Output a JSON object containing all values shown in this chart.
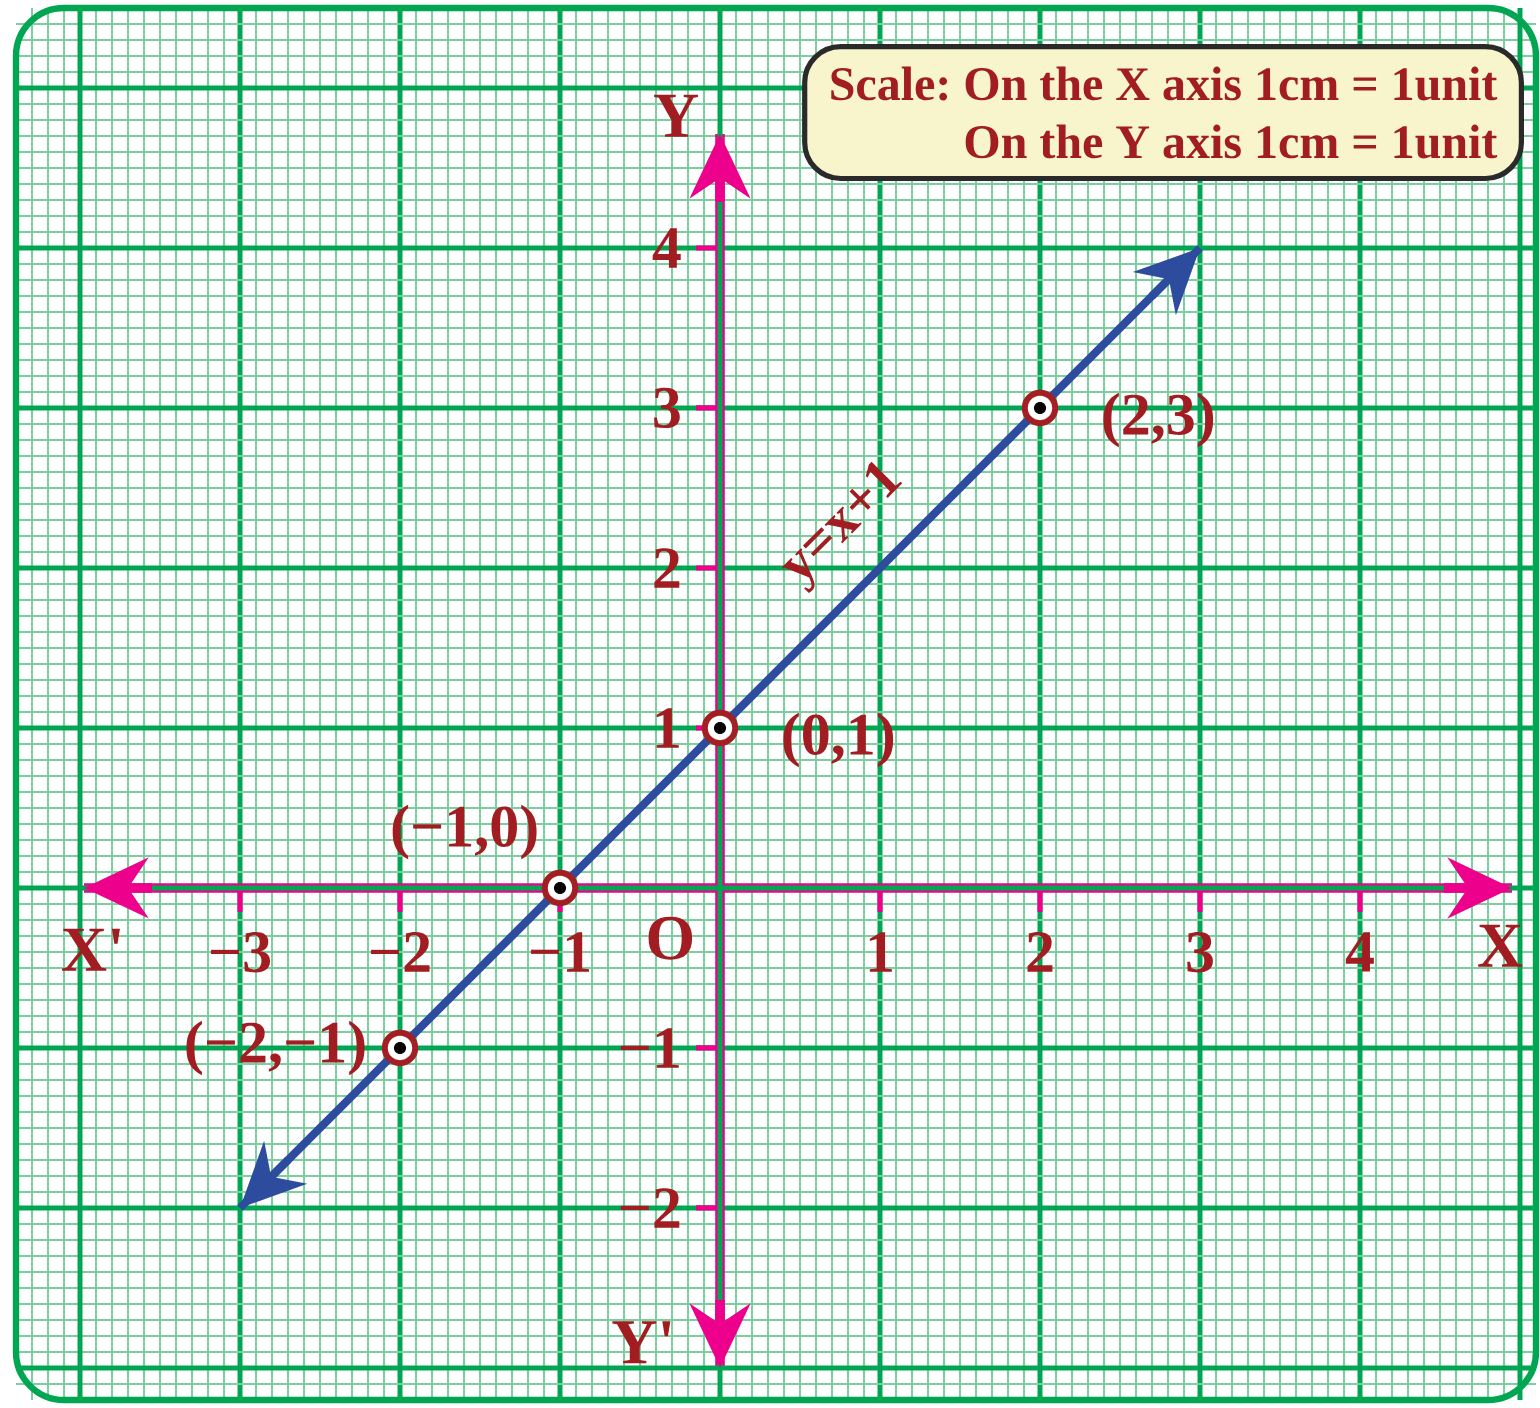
{
  "chart_data": {
    "type": "line",
    "xlabel": "X",
    "ylabel": "Y",
    "annotations": [
      "X'",
      "Y'",
      "O",
      "Scale: On the X axis 1cm = 1unit",
      "On the Y axis 1cm = 1unit",
      {
        "text": "(−2,−1)",
        "x": -2,
        "y": -1
      },
      {
        "text": "(−1,0)",
        "x": -1,
        "y": 0
      },
      {
        "text": "(0,1)",
        "x": 0,
        "y": 1
      },
      {
        "text": "(2,3)",
        "x": 2,
        "y": 3
      }
    ],
    "series": [
      {
        "name": "y=x+1",
        "color": "#2e4c9e",
        "x": [
          -3,
          3
        ],
        "values": [
          -2,
          4
        ],
        "marker": "none"
      },
      {
        "type": "scatter",
        "color": "#a31f24",
        "x": [
          -2,
          -1,
          0,
          2
        ],
        "values": [
          -1,
          0,
          1,
          3
        ],
        "marker": "circle"
      }
    ],
    "xlim": [
      -4.4,
      5.1
    ],
    "ylim": [
      -3.2,
      5.5
    ],
    "xticks": [
      {
        "value": -4,
        "label": null
      },
      {
        "value": -3,
        "label": "−3"
      },
      {
        "value": -2,
        "label": "−2"
      },
      {
        "value": -1,
        "label": "−1"
      },
      {
        "value": 0,
        "label": null
      },
      1,
      2,
      3,
      4,
      {
        "value": 5,
        "label": null
      },
      {
        "value": -4.3,
        "label": null
      },
      {
        "value": -4.2,
        "label": null
      },
      {
        "value": -4.1,
        "label": null
      },
      {
        "value": -3.9,
        "label": null
      },
      {
        "value": -3.8,
        "label": null
      },
      {
        "value": -3.7,
        "label": null
      },
      {
        "value": -3.6,
        "label": null
      },
      {
        "value": -3.5,
        "label": null
      },
      {
        "value": -3.4,
        "label": null
      },
      {
        "value": -3.3,
        "label": null
      },
      {
        "value": -3.2,
        "label": null
      },
      {
        "value": -3.1,
        "label": null
      },
      {
        "value": -2.9,
        "label": null
      },
      {
        "value": -2.8,
        "label": null
      },
      {
        "value": -2.7,
        "label": null
      },
      {
        "value": -2.6,
        "label": null
      },
      {
        "value": -2.5,
        "label": null
      },
      {
        "value": -2.4,
        "label": null
      },
      {
        "value": -2.3,
        "label": null
      },
      {
        "value": -2.2,
        "label": null
      },
      {
        "value": -2.1,
        "label": null
      },
      {
        "value": -1.9,
        "label": null
      },
      {
        "value": -1.8,
        "label": null
      },
      {
        "value": -1.7,
        "label": null
      },
      {
        "value": -1.6,
        "label": null
      },
      {
        "value": -1.5,
        "label": null
      },
      {
        "value": -1.4,
        "label": null
      },
      {
        "value": -1.3,
        "label": null
      },
      {
        "value": -1.2,
        "label": null
      },
      {
        "value": -1.1,
        "label": null
      },
      {
        "value": -0.9,
        "label": null
      },
      {
        "value": -0.8,
        "label": null
      },
      {
        "value": -0.7,
        "label": null
      },
      {
        "value": -0.6,
        "label": null
      },
      {
        "value": -0.5,
        "label": null
      },
      {
        "value": -0.4,
        "label": null
      },
      {
        "value": -0.3,
        "label": null
      },
      {
        "value": -0.2,
        "label": null
      },
      {
        "value": -0.1,
        "label": null
      },
      {
        "value": 0.1,
        "label": null
      },
      {
        "value": 0.2,
        "label": null
      },
      {
        "value": 0.3,
        "label": null
      },
      {
        "value": 0.4,
        "label": null
      },
      {
        "value": 0.5,
        "label": null
      },
      {
        "value": 0.6,
        "label": null
      },
      {
        "value": 0.7,
        "label": null
      },
      {
        "value": 0.8,
        "label": null
      },
      {
        "value": 0.9,
        "label": null
      },
      {
        "value": 1.1,
        "label": null
      },
      {
        "value": 1.2,
        "label": null
      },
      {
        "value": 1.3,
        "label": null
      },
      {
        "value": 1.4,
        "label": null
      },
      {
        "value": 1.5,
        "label": null
      },
      {
        "value": 1.6,
        "label": null
      },
      {
        "value": 1.7,
        "label": null
      },
      {
        "value": 1.8,
        "label": null
      },
      {
        "value": 1.9,
        "label": null
      },
      {
        "value": 2.1,
        "label": null
      },
      {
        "value": 2.2,
        "label": null
      },
      {
        "value": 2.3,
        "label": null
      },
      {
        "value": 2.4,
        "label": null
      },
      {
        "value": 2.5,
        "label": null
      },
      {
        "value": 2.6,
        "label": null
      },
      {
        "value": 2.7,
        "label": null
      },
      {
        "value": 2.8,
        "label": null
      },
      {
        "value": 2.9,
        "label": null
      },
      {
        "value": 3.1,
        "label": null
      },
      {
        "value": 3.2,
        "label": null
      },
      {
        "value": 3.3,
        "label": null
      },
      {
        "value": 3.4,
        "label": null
      },
      {
        "value": 3.5,
        "label": null
      },
      {
        "value": 3.6,
        "label": null
      },
      {
        "value": 3.7,
        "label": null
      },
      {
        "value": 3.8,
        "label": null
      },
      {
        "value": 3.9,
        "label": null
      },
      {
        "value": 4.1,
        "label": null
      },
      {
        "value": 4.2,
        "label": null
      },
      {
        "value": 4.3,
        "label": null
      },
      {
        "value": 4.4,
        "label": null
      },
      {
        "value": 4.5,
        "label": null
      },
      {
        "value": 4.6,
        "label": null
      },
      {
        "value": 4.7,
        "label": null
      },
      {
        "value": 4.8,
        "label": null
      },
      {
        "value": 4.9,
        "label": null
      }
    ],
    "yticks": [
      {
        "value": -3,
        "label": null
      },
      {
        "value": -2,
        "label": "−2"
      },
      {
        "value": -1,
        "label": "−1"
      },
      {
        "value": 0,
        "label": null
      },
      1,
      2,
      3,
      4,
      {
        "value": 5,
        "label": null
      },
      {
        "value": -3.1,
        "label": null
      },
      {
        "value": -2.9,
        "label": null
      },
      {
        "value": -2.8,
        "label": null
      },
      {
        "value": -2.7,
        "label": null
      },
      {
        "value": -2.6,
        "label": null
      },
      {
        "value": -2.5,
        "label": null
      },
      {
        "value": -2.4,
        "label": null
      },
      {
        "value": -2.3,
        "label": null
      },
      {
        "value": -2.2,
        "label": null
      },
      {
        "value": -2.1,
        "label": null
      },
      {
        "value": -1.9,
        "label": null
      },
      {
        "value": -1.8,
        "label": null
      },
      {
        "value": -1.7,
        "label": null
      },
      {
        "value": -1.6,
        "label": null
      },
      {
        "value": -1.5,
        "label": null
      },
      {
        "value": -1.4,
        "label": null
      },
      {
        "value": -1.3,
        "label": null
      },
      {
        "value": -1.2,
        "label": null
      },
      {
        "value": -1.1,
        "label": null
      },
      {
        "value": -0.9,
        "label": null
      },
      {
        "value": -0.8,
        "label": null
      },
      {
        "value": -0.7,
        "label": null
      },
      {
        "value": -0.6,
        "label": null
      },
      {
        "value": -0.5,
        "label": null
      },
      {
        "value": -0.4,
        "label": null
      },
      {
        "value": -0.3,
        "label": null
      },
      {
        "value": -0.2,
        "label": null
      },
      {
        "value": -0.1,
        "label": null
      },
      {
        "value": 0.1,
        "label": null
      },
      {
        "value": 0.2,
        "label": null
      },
      {
        "value": 0.3,
        "label": null
      },
      {
        "value": 0.4,
        "label": null
      },
      {
        "value": 0.5,
        "label": null
      },
      {
        "value": 0.6,
        "label": null
      },
      {
        "value": 0.7,
        "label": null
      },
      {
        "value": 0.8,
        "label": null
      },
      {
        "value": 0.9,
        "label": null
      },
      {
        "value": 1.1,
        "label": null
      },
      {
        "value": 1.2,
        "label": null
      },
      {
        "value": 1.3,
        "label": null
      },
      {
        "value": 1.4,
        "label": null
      },
      {
        "value": 1.5,
        "label": null
      },
      {
        "value": 1.6,
        "label": null
      },
      {
        "value": 1.7,
        "label": null
      },
      {
        "value": 1.8,
        "label": null
      },
      {
        "value": 1.9,
        "label": null
      },
      {
        "value": 2.1,
        "label": null
      },
      {
        "value": 2.2,
        "label": null
      },
      {
        "value": 2.3,
        "label": null
      },
      {
        "value": 2.4,
        "label": null
      },
      {
        "value": 2.5,
        "label": null
      },
      {
        "value": 2.6,
        "label": null
      },
      {
        "value": 2.7,
        "label": null
      },
      {
        "value": 2.8,
        "label": null
      },
      {
        "value": 2.9,
        "label": null
      },
      {
        "value": 3.1,
        "label": null
      },
      {
        "value": 3.2,
        "label": null
      },
      {
        "value": 3.3,
        "label": null
      },
      {
        "value": 3.4,
        "label": null
      },
      {
        "value": 3.5,
        "label": null
      },
      {
        "value": 3.6,
        "label": null
      },
      {
        "value": 3.7,
        "label": null
      },
      {
        "value": 3.8,
        "label": null
      },
      {
        "value": 3.9,
        "label": null
      },
      {
        "value": 4.1,
        "label": null
      },
      {
        "value": 4.2,
        "label": null
      },
      {
        "value": 4.3,
        "label": null
      },
      {
        "value": 4.4,
        "label": null
      },
      {
        "value": 4.5,
        "label": null
      },
      {
        "value": 4.6,
        "label": null
      },
      {
        "value": 4.7,
        "label": null
      },
      {
        "value": 4.8,
        "label": null
      },
      {
        "value": 4.9,
        "label": null
      },
      {
        "value": 5.1,
        "label": null
      },
      {
        "value": 5.2,
        "label": null
      },
      {
        "value": 5.3,
        "label": null
      },
      {
        "value": 5.4,
        "label": null
      }
    ],
    "grid": true
  }
}
